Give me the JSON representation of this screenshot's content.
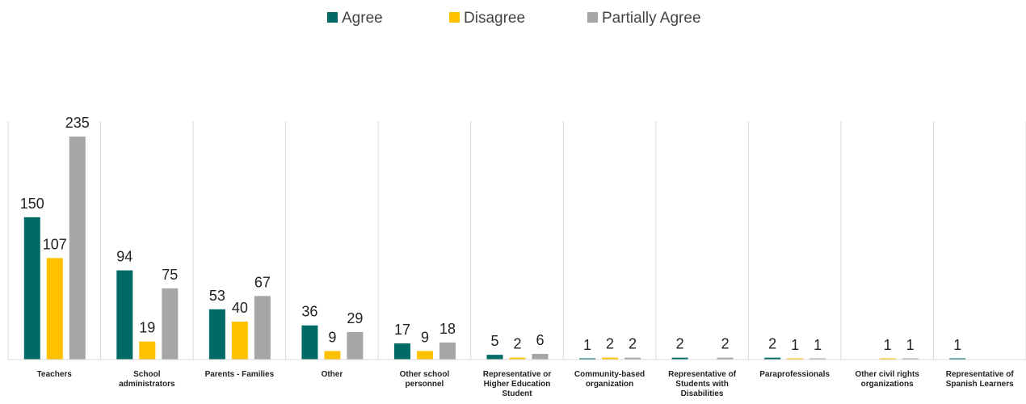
{
  "chart_data": {
    "type": "bar",
    "categories": [
      "Teachers",
      "School administrators",
      "Parents - Families",
      "Other",
      "Other school personnel",
      "Representative or Higher Education Student",
      "Community-based organization",
      "Representative of Students with Disabilities",
      "Paraprofessionals",
      "Other civil rights organizations",
      "Representative of Spanish Learners"
    ],
    "series": [
      {
        "name": "Agree",
        "color": "#006A66",
        "values": [
          150,
          94,
          53,
          36,
          17,
          5,
          1,
          2,
          2,
          null,
          1
        ]
      },
      {
        "name": "Disagree",
        "color": "#FFC000",
        "values": [
          107,
          19,
          40,
          9,
          9,
          2,
          2,
          null,
          1,
          1,
          null
        ]
      },
      {
        "name": "Partially Agree",
        "color": "#A6A6A6",
        "values": [
          235,
          75,
          67,
          29,
          18,
          6,
          2,
          2,
          1,
          1,
          null
        ]
      }
    ],
    "ylim": [
      0,
      235
    ],
    "grid": false,
    "legend_position": "top-center",
    "title": "",
    "xlabel": "",
    "ylabel": ""
  }
}
